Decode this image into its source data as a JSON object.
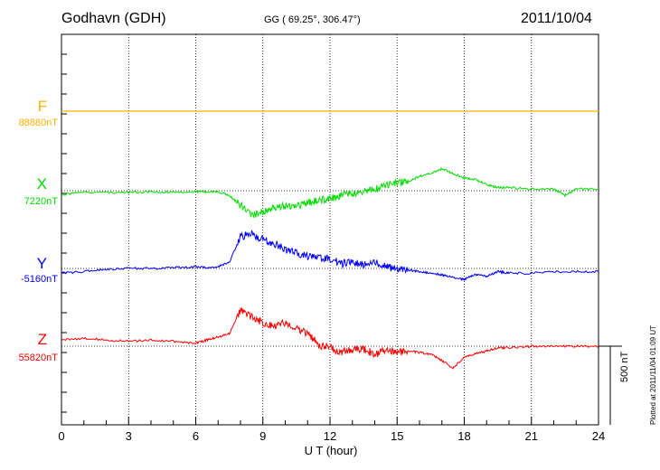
{
  "header": {
    "station": "Godhavn (GDH)",
    "coords": "GG ( 69.25°, 306.47°)",
    "date": "2011/10/04"
  },
  "footer": {
    "xlabel": "U T (hour)",
    "plotted": "Plotted at 2011/11/04 01:09 UT",
    "scale_label": "500 nT"
  },
  "chart_data": {
    "type": "line",
    "title": "Godhavn (GDH)",
    "xlabel": "U T (hour)",
    "ylabel": "",
    "xlim": [
      0,
      24
    ],
    "xticks": [
      0,
      3,
      6,
      9,
      12,
      15,
      18,
      21,
      24
    ],
    "grid": true,
    "scale_bar_nT": 500,
    "series": [
      {
        "name": "F",
        "baseline_label": "88880nT",
        "color": "#ffb000",
        "x": [
          0,
          24
        ],
        "y": [
          0,
          0
        ]
      },
      {
        "name": "X",
        "baseline_label": "7220nT",
        "color": "#00dd00",
        "x": [
          0,
          1,
          2,
          3,
          4,
          5,
          6,
          6.5,
          7,
          7.5,
          8,
          8.5,
          9,
          9.5,
          10,
          10.5,
          11,
          11.5,
          12,
          12.5,
          13,
          13.5,
          14,
          14.5,
          15,
          15.5,
          16,
          16.5,
          17,
          17.5,
          18,
          18.5,
          19,
          19.5,
          20,
          21,
          22,
          22.5,
          23,
          24
        ],
        "y": [
          -25,
          -10,
          -10,
          -12,
          -5,
          -10,
          -5,
          -8,
          -5,
          -30,
          -90,
          -160,
          -130,
          -100,
          -100,
          -90,
          -80,
          -60,
          -50,
          -30,
          -20,
          -10,
          10,
          30,
          50,
          60,
          90,
          110,
          140,
          110,
          80,
          70,
          40,
          20,
          20,
          10,
          10,
          -30,
          10,
          10
        ]
      },
      {
        "name": "Y",
        "baseline_label": "-5160nT",
        "color": "#0000ff",
        "x": [
          0,
          1,
          2,
          3,
          4,
          5,
          6,
          6.5,
          7,
          7.5,
          8,
          8.5,
          9,
          9.5,
          10,
          10.5,
          11,
          11.5,
          12,
          12.5,
          13,
          13.5,
          14,
          14.5,
          15,
          15.5,
          16,
          16.5,
          17,
          17.5,
          18,
          18.5,
          19,
          19.5,
          20,
          21,
          22,
          23,
          24
        ],
        "y": [
          -30,
          -20,
          -5,
          0,
          0,
          5,
          10,
          5,
          10,
          40,
          200,
          220,
          180,
          160,
          120,
          100,
          80,
          70,
          60,
          30,
          40,
          20,
          40,
          10,
          0,
          -10,
          -20,
          -30,
          -40,
          -60,
          -70,
          -40,
          -50,
          -20,
          -30,
          -30,
          -20,
          -20,
          -20
        ]
      },
      {
        "name": "Z",
        "baseline_label": "55820nT",
        "color": "#ff0000",
        "x": [
          0,
          1,
          2,
          3,
          4,
          5,
          6,
          6.5,
          7,
          7.5,
          8,
          8.5,
          9,
          9.5,
          10,
          10.5,
          11,
          11.5,
          12,
          12.5,
          13,
          13.5,
          14,
          14.5,
          15,
          15.5,
          16,
          16.5,
          17,
          17.5,
          18,
          18.5,
          19,
          19.5,
          20,
          21,
          22,
          23,
          24
        ],
        "y": [
          40,
          50,
          40,
          30,
          40,
          30,
          20,
          40,
          60,
          80,
          230,
          190,
          150,
          130,
          150,
          120,
          80,
          10,
          -10,
          -40,
          -20,
          -20,
          -50,
          -30,
          -40,
          -30,
          -40,
          -50,
          -90,
          -140,
          -70,
          -50,
          -30,
          -10,
          -10,
          0,
          0,
          0,
          0
        ]
      }
    ]
  }
}
